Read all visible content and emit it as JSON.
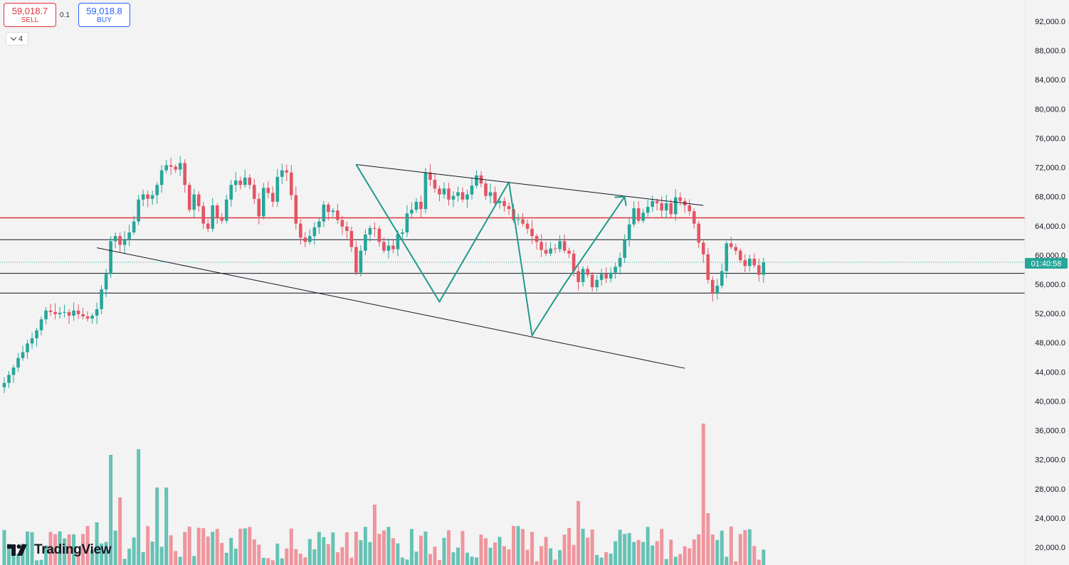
{
  "trade_panel": {
    "sell_price": "59,018.7",
    "sell_label": "SELL",
    "spread": "0.1",
    "buy_price": "59,018.8",
    "buy_label": "BUY",
    "indicator_count": "4"
  },
  "branding": {
    "logo_text": "TradingView"
  },
  "colors": {
    "up": "#26a69a",
    "up_volume": "#66c2b5",
    "down": "#e35565",
    "down_volume": "#ef959d",
    "resistance": "#e0313a",
    "pattern": "#1f9a8a",
    "price_tag": "#26a69a"
  },
  "chart_data": {
    "type": "candlestick",
    "price_axis": {
      "ticks": [
        "92,000.0",
        "88,000.0",
        "84,000.0",
        "80,000.0",
        "76,000.0",
        "72,000.0",
        "68,000.0",
        "64,000.0",
        "60,000.0",
        "56,000.0",
        "52,000.0",
        "48,000.0",
        "44,000.0",
        "40,000.0",
        "36,000.0",
        "32,000.0",
        "28,000.0",
        "24,000.0",
        "20,000.0"
      ],
      "range": [
        19000,
        93500
      ]
    },
    "current_price": 59018.7,
    "countdown": "01:40:58",
    "horizontal_levels": [
      {
        "price": 65100,
        "role": "resistance"
      },
      {
        "price": 62100,
        "role": "support"
      },
      {
        "price": 57500,
        "role": "support"
      },
      {
        "price": 54800,
        "role": "support"
      }
    ],
    "trendlines": [
      {
        "from": [
          76,
          72400
        ],
        "to": [
          151,
          66800
        ]
      },
      {
        "from": [
          20,
          61000
        ],
        "to": [
          147,
          44500
        ]
      }
    ],
    "pattern_path": [
      [
        76,
        72400
      ],
      [
        94,
        53600
      ],
      [
        109,
        70000
      ],
      [
        114,
        49000
      ],
      [
        121,
        56000
      ],
      [
        134,
        68000
      ]
    ],
    "closes": [
      42500,
      43600,
      44600,
      45900,
      46700,
      47900,
      48600,
      49700,
      51200,
      52400,
      52200,
      51900,
      52100,
      52200,
      51700,
      52400,
      51900,
      51600,
      51300,
      51700,
      52600,
      55300,
      57400,
      61900,
      62600,
      61400,
      62200,
      63100,
      64600,
      67600,
      68300,
      67700,
      68200,
      69600,
      71600,
      72300,
      72100,
      71700,
      72600,
      69600,
      66200,
      68300,
      66700,
      64300,
      63600,
      66800,
      65100,
      64700,
      67600,
      69600,
      70200,
      69600,
      70600,
      69600,
      67700,
      65300,
      69200,
      68500,
      67300,
      70700,
      71600,
      71300,
      68200,
      64300,
      62400,
      61800,
      62600,
      63800,
      64600,
      66900,
      65900,
      66100,
      64800,
      63900,
      63300,
      61100,
      57600,
      60600,
      62800,
      63700,
      63600,
      61800,
      60600,
      61300,
      60800,
      62900,
      63100,
      65700,
      66200,
      67300,
      66300,
      71300,
      70300,
      69100,
      68300,
      69100,
      67600,
      68100,
      68600,
      67600,
      68300,
      69500,
      70900,
      69800,
      68100,
      68600,
      67100,
      67400,
      66700,
      66300,
      64800,
      64900,
      64300,
      63600,
      62600,
      61800,
      60700,
      60200,
      60900,
      60800,
      61900,
      60600,
      60200,
      57800,
      56300,
      58100,
      57300,
      55600,
      56600,
      57400,
      56800,
      57600,
      58400,
      59600,
      62100,
      64200,
      66400,
      64700,
      65800,
      66600,
      67400,
      67100,
      66100,
      67100,
      65600,
      67900,
      67400,
      66800,
      66000,
      64300,
      61700,
      60100,
      56600,
      54800,
      55800,
      57800,
      61600,
      61100,
      60600,
      59300,
      58500,
      59500,
      58600,
      57300,
      59018
    ]
  }
}
